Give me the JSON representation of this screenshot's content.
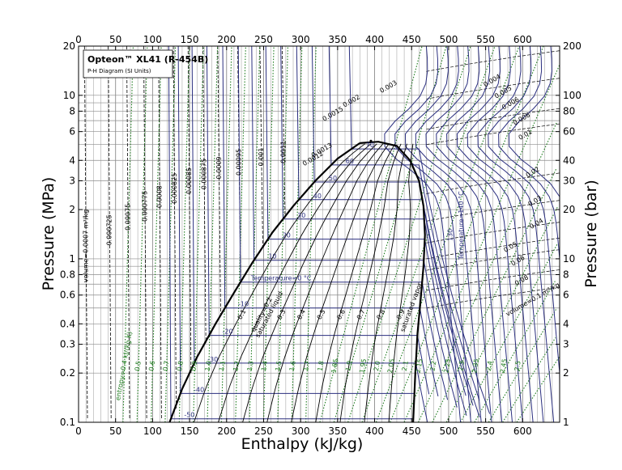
{
  "chart_data": {
    "type": "line",
    "title": "Opteon™ XL41 (R-454B)",
    "subtitle": "P-H Diagram (SI Units)",
    "xlabel": "Enthalpy (kJ/kg)",
    "ylabel": "Pressure (MPa)",
    "ylabel_right": "Pressure (bar)",
    "xlim": [
      0,
      650
    ],
    "ylim": [
      0.1,
      20
    ],
    "y_scale": "log",
    "grid": true,
    "x_ticks": [
      0,
      50,
      100,
      150,
      200,
      250,
      300,
      350,
      400,
      450,
      500,
      550,
      600
    ],
    "x_tick_labels": [
      "0",
      "50",
      "100",
      "150",
      "200",
      "250",
      "300",
      "350",
      "400",
      "450",
      "500",
      "550",
      "600"
    ],
    "y_ticks": [
      0.1,
      0.2,
      0.3,
      0.4,
      0.6,
      0.8,
      1,
      2,
      3,
      4,
      6,
      8,
      10,
      20
    ],
    "y_tick_labels": [
      "0.1",
      "0.2",
      "0.3",
      "0.4",
      "0.6",
      "0.8",
      "1",
      "2",
      "3",
      "4",
      "6",
      "8",
      "10",
      "20"
    ],
    "y_right_tick_labels": [
      "1",
      "2",
      "3",
      "4",
      "6",
      "8",
      "10",
      "20",
      "30",
      "40",
      "60",
      "80",
      "100",
      "200"
    ],
    "saturated_liquid": {
      "label": "saturated liquid",
      "h": [
        123,
        140,
        160,
        185,
        210,
        235,
        262,
        290,
        320,
        350,
        380
      ],
      "p": [
        0.1,
        0.16,
        0.25,
        0.4,
        0.62,
        0.95,
        1.45,
        2.1,
        3.0,
        4.1,
        5.1
      ]
    },
    "saturated_vapor": {
      "label": "saturated vapor",
      "h": [
        380,
        405,
        430,
        448,
        460,
        466,
        468,
        466,
        462,
        458,
        455,
        452
      ],
      "p": [
        5.1,
        5.2,
        4.9,
        4.0,
        3.0,
        2.1,
        1.4,
        0.9,
        0.55,
        0.35,
        0.2,
        0.1
      ]
    },
    "critical_point": {
      "h": 395,
      "p": 5.26
    },
    "isotherms": {
      "label_prefix": "Temperature=",
      "unit": "°C",
      "labels": [
        "-50",
        "-40",
        "-30",
        "-20",
        "-10",
        "0",
        "10",
        "20",
        "30",
        "40",
        "50",
        "60",
        "70",
        "130",
        "140"
      ],
      "values": [
        -50,
        -40,
        -30,
        -20,
        -10,
        0,
        10,
        20,
        30,
        40,
        50,
        60,
        70,
        130,
        140
      ],
      "saturation_pressure": [
        0.105,
        0.15,
        0.23,
        0.34,
        0.5,
        0.72,
        0.98,
        1.32,
        1.75,
        2.3,
        2.95,
        3.75,
        4.7,
        null,
        null
      ]
    },
    "quality_lines": {
      "label_prefix": "quality=",
      "labels": [
        "0.1",
        "0.2",
        "0.3",
        "0.4",
        "0.5",
        "0.6",
        "0.7",
        "0.8",
        "0.9"
      ],
      "values": [
        0.1,
        0.2,
        0.3,
        0.4,
        0.5,
        0.6,
        0.7,
        0.8,
        0.9
      ]
    },
    "isentropes": {
      "label_prefix": "entropy=",
      "unit": "kJ/(kg K)",
      "labels": [
        "0.4",
        "0.5",
        "0.6",
        "0.7",
        "0.8",
        "0.9",
        "1.0",
        "1.1",
        "1.2",
        "1.3",
        "1.4",
        "1.5",
        "1.6",
        "1.7",
        "1.8",
        "1.85",
        "1.9",
        "1.95",
        "2.0",
        "2.05",
        "2.1",
        "2.15",
        "2.2",
        "2.25",
        "2.3",
        "2.35",
        "2.4",
        "2.45",
        "2.5"
      ],
      "values": [
        0.4,
        0.5,
        0.6,
        0.7,
        0.8,
        0.9,
        1.0,
        1.1,
        1.2,
        1.3,
        1.4,
        1.5,
        1.6,
        1.7,
        1.8,
        1.85,
        1.9,
        1.95,
        2.0,
        2.05,
        2.1,
        2.15,
        2.2,
        2.25,
        2.3,
        2.35,
        2.4,
        2.45,
        2.5
      ]
    },
    "isochores": {
      "label_prefix": "volume=",
      "unit": "m³/kg",
      "labels": [
        "0.0007",
        "0.000725",
        "0.00075",
        "0.000775",
        "0.0008",
        "0.000825",
        "0.00085",
        "0.000875",
        "0.0009",
        "0.00095",
        "0.001",
        "0.0011",
        "0.0012",
        "0.0013",
        "0.0015",
        "0.002",
        "0.003",
        "0.004",
        "0.005",
        "0.006",
        "0.008",
        "0.01",
        "0.02",
        "0.03",
        "0.04",
        "0.05",
        "0.06",
        "0.08",
        "0.1"
      ],
      "values": [
        0.0007,
        0.000725,
        0.00075,
        0.000775,
        0.0008,
        0.000825,
        0.00085,
        0.000875,
        0.0009,
        0.00095,
        0.001,
        0.0011,
        0.0012,
        0.0013,
        0.0015,
        0.002,
        0.003,
        0.004,
        0.005,
        0.006,
        0.008,
        0.01,
        0.02,
        0.03,
        0.04,
        0.05,
        0.06,
        0.08,
        0.1
      ]
    },
    "colors": {
      "isotherm": "#2b2f7f",
      "isentrope": "#1c7a1c",
      "isochore": "#000000",
      "quality": "#000000",
      "saturation": "#000000",
      "grid": "#8c8c8c"
    }
  }
}
